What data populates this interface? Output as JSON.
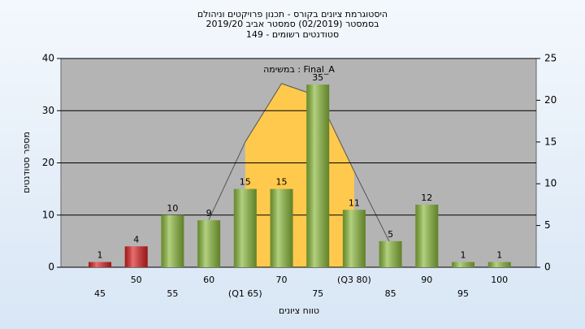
{
  "chart_data": {
    "type": "bar",
    "title": "היסטוגרמת ציונים בקורס - תכנון פרויקטים וניהולם",
    "subtitle": "בסמסטר  (02/2019)  סמסטר אביב 2019/20",
    "subtitle2": "סטודנטים רשומים - 149",
    "annotation": "במשימה : Final_A",
    "xlabel": "טווח ציונים",
    "ylabel": "מספר סטודנטים",
    "categories": [
      "45",
      "50",
      "55",
      "60",
      "(Q1 65)",
      "70",
      "75",
      "(Q3 80)",
      "85",
      "90",
      "95",
      "100"
    ],
    "series": [
      {
        "type": "bar",
        "values": [
          1,
          4,
          10,
          9,
          15,
          15,
          35,
          11,
          5,
          12,
          1,
          1
        ],
        "colors": [
          "#d92020",
          "#d92020",
          "#8ab83a",
          "#8ab83a",
          "#8ab83a",
          "#8ab83a",
          "#8ab83a",
          "#8ab83a",
          "#8ab83a",
          "#8ab83a",
          "#8ab83a",
          "#8ab83a"
        ]
      },
      {
        "type": "area",
        "axis": "y2",
        "color": "#ffc94d",
        "line_color": "#555555",
        "values": [
          null,
          null,
          null,
          5.7,
          15,
          22,
          20.5,
          11.5,
          2.8,
          null,
          null,
          null
        ]
      }
    ],
    "ylim": [
      0,
      40
    ],
    "yticks": [
      0,
      10,
      20,
      30,
      40
    ],
    "y2lim": [
      0,
      25
    ],
    "y2ticks": [
      0,
      5,
      10,
      15,
      20,
      25
    ],
    "grid": true
  }
}
